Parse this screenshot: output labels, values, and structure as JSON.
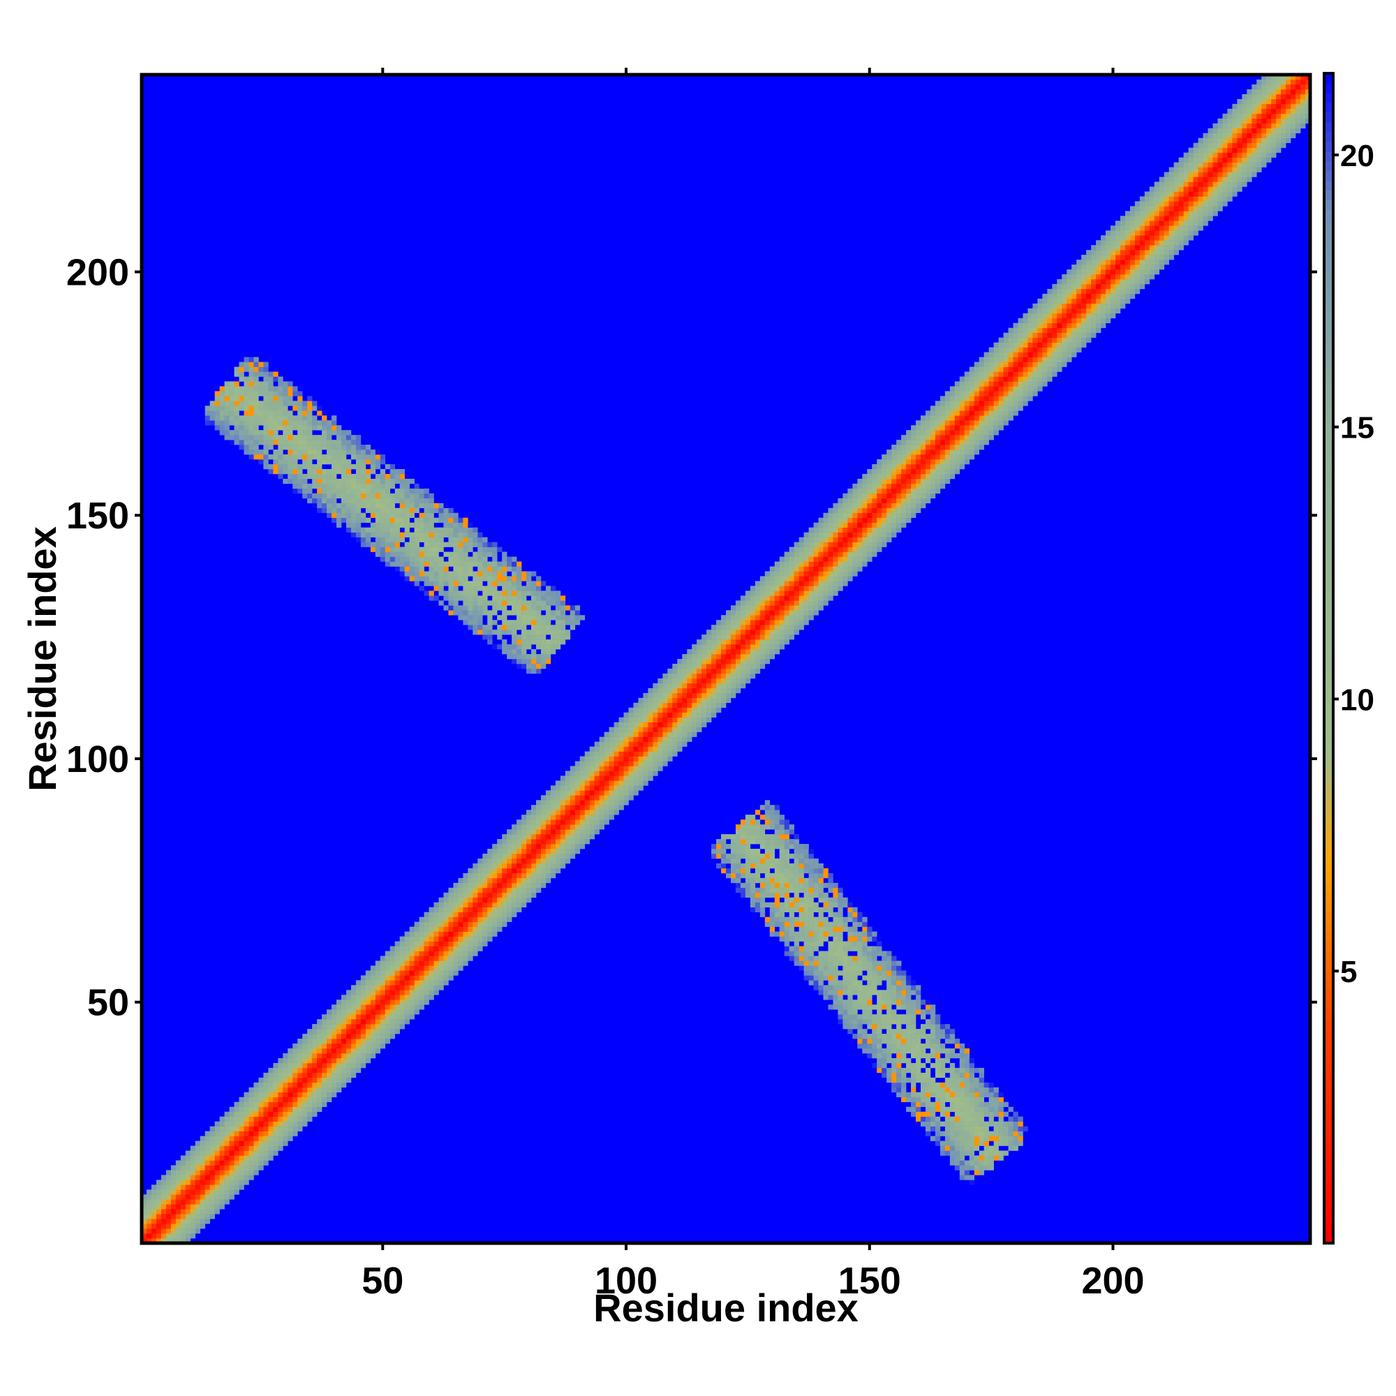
{
  "chart_data": {
    "type": "heatmap",
    "title": "",
    "xlabel": "Residue index",
    "ylabel": "Residue index",
    "x_range": [
      1,
      240
    ],
    "y_range": [
      1,
      240
    ],
    "x_ticks": [
      50,
      100,
      150,
      200
    ],
    "y_ticks": [
      50,
      100,
      150,
      200
    ],
    "colorbar": {
      "range": [
        0,
        21.5
      ],
      "ticks": [
        5,
        10,
        15,
        20
      ],
      "stops": [
        {
          "value": 0,
          "color": "#ff0000"
        },
        {
          "value": 4,
          "color": "#ff4000"
        },
        {
          "value": 7,
          "color": "#ffa500"
        },
        {
          "value": 9,
          "color": "#a0bd8a"
        },
        {
          "value": 15,
          "color": "#8fb09a"
        },
        {
          "value": 19,
          "color": "#7090b8"
        },
        {
          "value": 21.5,
          "color": "#0000ff"
        }
      ]
    },
    "background_value": 21.5,
    "features": {
      "diagonal": {
        "from": 1,
        "to": 240,
        "core_value": 0,
        "half_width_residues": 9
      },
      "contact_bands": [
        {
          "from": [
            84,
            125
          ],
          "to": [
            20,
            175
          ],
          "note": "antiparallel band above diagonal"
        },
        {
          "from": [
            125,
            84
          ],
          "to": [
            175,
            20
          ],
          "note": "mirror band below diagonal"
        }
      ],
      "corner_region_value_range": [
        6,
        20
      ]
    }
  }
}
